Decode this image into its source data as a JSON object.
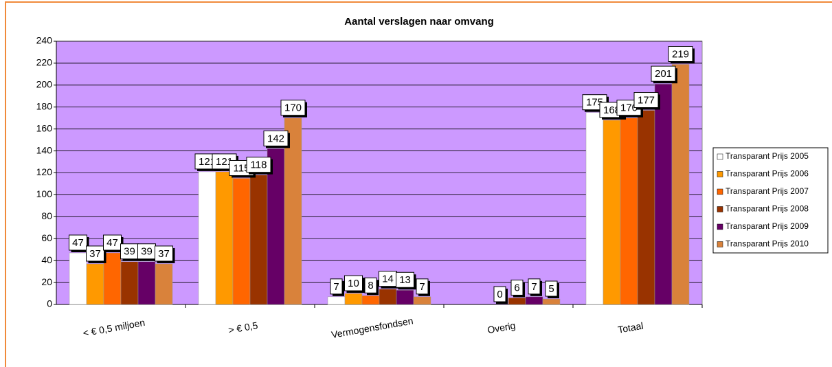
{
  "chart_data": {
    "type": "bar",
    "title": "Aantal verslagen naar omvang",
    "categories": [
      "< € 0,5 miljoen",
      "> € 0,5",
      "Vermogensfondsen",
      "Overig",
      "Totaal"
    ],
    "series": [
      {
        "name": "Transparant Prijs 2005",
        "color": "#ffffff",
        "values": [
          47,
          121,
          7,
          null,
          175
        ]
      },
      {
        "name": "Transparant Prijs 2006",
        "color": "#ff9900",
        "values": [
          37,
          121,
          10,
          null,
          168
        ]
      },
      {
        "name": "Transparant Prijs 2007",
        "color": "#ff6600",
        "values": [
          47,
          115,
          8,
          0,
          170
        ]
      },
      {
        "name": "Transparant Prijs 2008",
        "color": "#993300",
        "values": [
          39,
          118,
          14,
          6,
          177
        ]
      },
      {
        "name": "Transparant Prijs 2009",
        "color": "#660066",
        "values": [
          39,
          142,
          13,
          7,
          201
        ]
      },
      {
        "name": "Transparant Prijs 2010",
        "color": "#d9823b",
        "values": [
          37,
          170,
          7,
          5,
          219
        ]
      }
    ],
    "ylim": [
      0,
      240
    ],
    "yticks": [
      0,
      20,
      40,
      60,
      80,
      100,
      120,
      140,
      160,
      180,
      200,
      220,
      240
    ],
    "grid": true,
    "legend": "right",
    "plot_color": "#cc99ff"
  }
}
